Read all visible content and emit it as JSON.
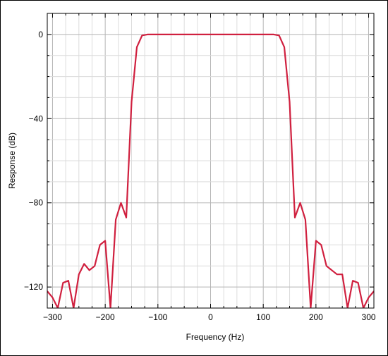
{
  "chart_data": {
    "type": "line",
    "title": "",
    "xlabel": "Frequency (Hz)",
    "ylabel": "Response (dB)",
    "xlim": [
      -310,
      310
    ],
    "ylim": [
      -130,
      10
    ],
    "xticks": [
      -300,
      -200,
      -100,
      0,
      100,
      200,
      300
    ],
    "xtick_labels": [
      "−300",
      "−200",
      "−100",
      "0",
      "100",
      "200",
      "300"
    ],
    "yticks": [
      0,
      -40,
      -80,
      -120
    ],
    "ytick_labels": [
      "0",
      "−40",
      "−80",
      "−120"
    ],
    "grid": true,
    "line_color": "#d0203f",
    "series": [
      {
        "x": [
          -310,
          -300,
          -290,
          -280,
          -270,
          -260,
          -250,
          -240,
          -230,
          -220,
          -210,
          -200,
          -190,
          -180,
          -170,
          -160,
          -150,
          -140,
          -130,
          -120,
          -110,
          -100,
          -90,
          -80,
          -70,
          -60,
          -50,
          -40,
          -30,
          -20,
          -10,
          0,
          10,
          20,
          30,
          40,
          50,
          60,
          70,
          80,
          90,
          100,
          110,
          120,
          130,
          140,
          150,
          160,
          170,
          180,
          190,
          200,
          210,
          220,
          230,
          240,
          250,
          260,
          270,
          280,
          290,
          300,
          310
        ],
        "y": [
          -122,
          -125,
          -130,
          -118,
          -117,
          -130,
          -114,
          -109,
          -112,
          -110,
          -100,
          -98,
          -130,
          -88,
          -80,
          -87,
          -32,
          -6,
          -0.5,
          0,
          0,
          0,
          0,
          0,
          0,
          0,
          0,
          0,
          0,
          0,
          0,
          0,
          0,
          0,
          0,
          0,
          0,
          0,
          0,
          0,
          0,
          0,
          0,
          0,
          -0.5,
          -6,
          -32,
          -87,
          -80,
          -88,
          -130,
          -98,
          -100,
          -110,
          -112,
          -114,
          -114,
          -130,
          -117,
          -118,
          -130,
          -125,
          -122
        ]
      }
    ]
  }
}
